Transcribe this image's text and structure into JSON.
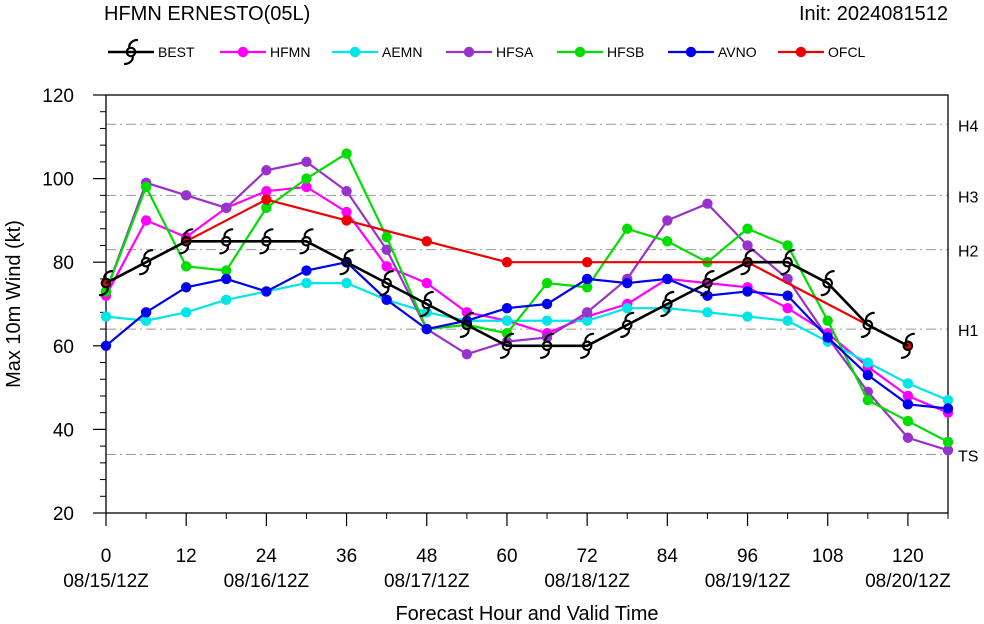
{
  "chart_data": {
    "type": "line",
    "title": "HFMN ERNESTO(05L)",
    "subtitle": "Init: 2024081512",
    "xlabel": "Forecast Hour and Valid Time",
    "ylabel": "Max 10m Wind (kt)",
    "xlim": [
      0,
      126
    ],
    "ylim": [
      20,
      120
    ],
    "x_ticks": [
      0,
      12,
      24,
      36,
      48,
      60,
      72,
      84,
      96,
      108,
      120
    ],
    "x_date_labels": [
      {
        "hour": 0,
        "label": "08/15/12Z"
      },
      {
        "hour": 24,
        "label": "08/16/12Z"
      },
      {
        "hour": 48,
        "label": "08/17/12Z"
      },
      {
        "hour": 72,
        "label": "08/18/12Z"
      },
      {
        "hour": 96,
        "label": "08/19/12Z"
      },
      {
        "hour": 120,
        "label": "08/20/12Z"
      }
    ],
    "y_ticks": [
      20,
      40,
      60,
      80,
      100,
      120
    ],
    "intensity_categories": [
      {
        "label": "TS",
        "value": 34
      },
      {
        "label": "H1",
        "value": 64
      },
      {
        "label": "H2",
        "value": 83
      },
      {
        "label": "H3",
        "value": 96
      },
      {
        "label": "H4",
        "value": 113
      }
    ],
    "legend_position": "top",
    "series": [
      {
        "name": "BEST",
        "color": "#000000",
        "marker": "hurricane-symbol",
        "x": [
          0,
          6,
          12,
          18,
          24,
          30,
          36,
          42,
          48,
          54,
          60,
          66,
          72,
          78,
          84,
          90,
          96,
          102,
          108,
          114,
          120
        ],
        "y": [
          75,
          80,
          85,
          85,
          85,
          85,
          80,
          75,
          70,
          65,
          60,
          60,
          60,
          65,
          70,
          75,
          80,
          80,
          75,
          65,
          60
        ]
      },
      {
        "name": "HFMN",
        "color": "#ff00ff",
        "marker": "dot",
        "x": [
          0,
          6,
          12,
          18,
          24,
          30,
          36,
          42,
          48,
          54,
          60,
          66,
          72,
          78,
          84,
          90,
          96,
          102,
          108,
          114,
          120,
          126
        ],
        "y": [
          72,
          90,
          86,
          93,
          97,
          98,
          92,
          79,
          75,
          68,
          66,
          63,
          67,
          70,
          76,
          75,
          74,
          69,
          63,
          55,
          48,
          44
        ]
      },
      {
        "name": "AEMN",
        "color": "#00e5e5",
        "marker": "dot",
        "x": [
          0,
          6,
          12,
          18,
          24,
          30,
          36,
          42,
          48,
          54,
          60,
          66,
          72,
          78,
          84,
          90,
          96,
          102,
          108,
          114,
          120,
          126
        ],
        "y": [
          67,
          66,
          68,
          71,
          73,
          75,
          75,
          71,
          68,
          66,
          66,
          66,
          66,
          69,
          69,
          68,
          67,
          66,
          61,
          56,
          51,
          47
        ]
      },
      {
        "name": "HFSA",
        "color": "#9932cc",
        "marker": "dot",
        "x": [
          0,
          6,
          12,
          18,
          24,
          30,
          36,
          42,
          48,
          54,
          60,
          66,
          72,
          78,
          84,
          90,
          96,
          102,
          108,
          114,
          120,
          126
        ],
        "y": [
          73,
          99,
          96,
          93,
          102,
          104,
          97,
          83,
          64,
          58,
          61,
          62,
          68,
          76,
          90,
          94,
          84,
          76,
          62,
          49,
          38,
          35
        ]
      },
      {
        "name": "HFSB",
        "color": "#00dd00",
        "marker": "dot",
        "x": [
          0,
          6,
          12,
          18,
          24,
          30,
          36,
          42,
          48,
          54,
          60,
          66,
          72,
          78,
          84,
          90,
          96,
          102,
          108,
          114,
          120,
          126
        ],
        "y": [
          73,
          98,
          79,
          78,
          93,
          100,
          106,
          86,
          64,
          65,
          63,
          75,
          74,
          88,
          85,
          80,
          88,
          84,
          66,
          47,
          42,
          37
        ]
      },
      {
        "name": "AVNO",
        "color": "#0000ee",
        "marker": "dot",
        "x": [
          0,
          6,
          12,
          18,
          24,
          30,
          36,
          42,
          48,
          54,
          60,
          66,
          72,
          78,
          84,
          90,
          96,
          102,
          108,
          114,
          120,
          126
        ],
        "y": [
          60,
          68,
          74,
          76,
          73,
          78,
          80,
          71,
          64,
          66,
          69,
          70,
          76,
          75,
          76,
          72,
          73,
          72,
          62,
          53,
          46,
          45
        ]
      },
      {
        "name": "OFCL",
        "color": "#ee0000",
        "marker": "dot",
        "x": [
          0,
          12,
          24,
          36,
          48,
          60,
          72,
          96,
          120
        ],
        "y": [
          75,
          85,
          95,
          90,
          85,
          80,
          80,
          80,
          60
        ]
      }
    ]
  }
}
